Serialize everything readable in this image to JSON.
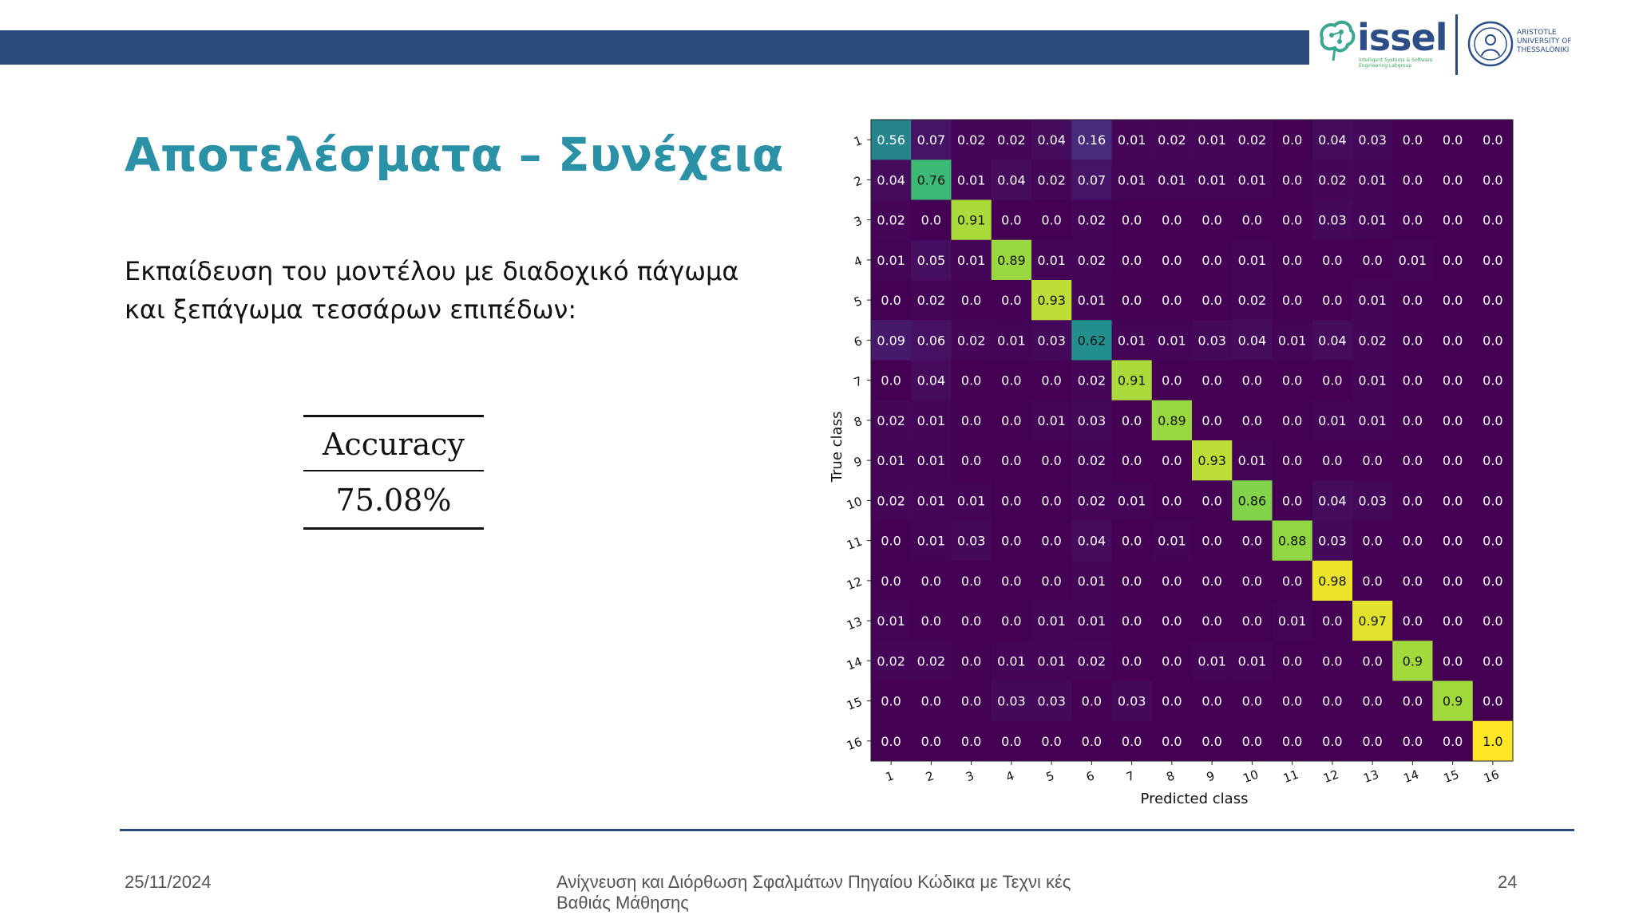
{
  "header": {
    "logo_issel_text": "issel",
    "logo_issel_sub": "Intelligent Systems & Software Engineering Labgroup",
    "logo_auth_text": "ARISTOTLE UNIVERSITY OF THESSALONIKI",
    "colors": {
      "bar": "#2b4a7d",
      "title": "#2a91a6"
    }
  },
  "slide": {
    "title": "Αποτελέσματα – Συνέχεια",
    "body_line1": "Εκπαίδευση του μοντέλου με διαδοχικό πάγωμα",
    "body_line2": "και ξεπάγωμα τεσσάρων επιπέδων:",
    "accuracy_header": "Accuracy",
    "accuracy_value": "75.08%"
  },
  "chart_data": {
    "type": "heatmap",
    "xlabel": "Predicted class",
    "ylabel": "True class",
    "classes": [
      "1",
      "2",
      "3",
      "4",
      "5",
      "6",
      "7",
      "8",
      "9",
      "10",
      "11",
      "12",
      "13",
      "14",
      "15",
      "16"
    ],
    "colormap": "viridis",
    "vmin": 0,
    "vmax": 1,
    "matrix": [
      [
        "0.56",
        "0.07",
        "0.02",
        "0.02",
        "0.04",
        "0.16",
        "0.01",
        "0.02",
        "0.01",
        "0.02",
        "0.0",
        "0.04",
        "0.03",
        "0.0",
        "0.0",
        "0.0"
      ],
      [
        "0.04",
        "0.76",
        "0.01",
        "0.04",
        "0.02",
        "0.07",
        "0.01",
        "0.01",
        "0.01",
        "0.01",
        "0.0",
        "0.02",
        "0.01",
        "0.0",
        "0.0",
        "0.0"
      ],
      [
        "0.02",
        "0.0",
        "0.91",
        "0.0",
        "0.0",
        "0.02",
        "0.0",
        "0.0",
        "0.0",
        "0.0",
        "0.0",
        "0.03",
        "0.01",
        "0.0",
        "0.0",
        "0.0"
      ],
      [
        "0.01",
        "0.05",
        "0.01",
        "0.89",
        "0.01",
        "0.02",
        "0.0",
        "0.0",
        "0.0",
        "0.01",
        "0.0",
        "0.0",
        "0.0",
        "0.01",
        "0.0",
        "0.0"
      ],
      [
        "0.0",
        "0.02",
        "0.0",
        "0.0",
        "0.93",
        "0.01",
        "0.0",
        "0.0",
        "0.0",
        "0.02",
        "0.0",
        "0.0",
        "0.01",
        "0.0",
        "0.0",
        "0.0"
      ],
      [
        "0.09",
        "0.06",
        "0.02",
        "0.01",
        "0.03",
        "0.62",
        "0.01",
        "0.01",
        "0.03",
        "0.04",
        "0.01",
        "0.04",
        "0.02",
        "0.0",
        "0.0",
        "0.0"
      ],
      [
        "0.0",
        "0.04",
        "0.0",
        "0.0",
        "0.0",
        "0.02",
        "0.91",
        "0.0",
        "0.0",
        "0.0",
        "0.0",
        "0.0",
        "0.01",
        "0.0",
        "0.0",
        "0.0"
      ],
      [
        "0.02",
        "0.01",
        "0.0",
        "0.0",
        "0.01",
        "0.03",
        "0.0",
        "0.89",
        "0.0",
        "0.0",
        "0.0",
        "0.01",
        "0.01",
        "0.0",
        "0.0",
        "0.0"
      ],
      [
        "0.01",
        "0.01",
        "0.0",
        "0.0",
        "0.0",
        "0.02",
        "0.0",
        "0.0",
        "0.93",
        "0.01",
        "0.0",
        "0.0",
        "0.0",
        "0.0",
        "0.0",
        "0.0"
      ],
      [
        "0.02",
        "0.01",
        "0.01",
        "0.0",
        "0.0",
        "0.02",
        "0.01",
        "0.0",
        "0.0",
        "0.86",
        "0.0",
        "0.04",
        "0.03",
        "0.0",
        "0.0",
        "0.0"
      ],
      [
        "0.0",
        "0.01",
        "0.03",
        "0.0",
        "0.0",
        "0.04",
        "0.0",
        "0.01",
        "0.0",
        "0.0",
        "0.88",
        "0.03",
        "0.0",
        "0.0",
        "0.0",
        "0.0"
      ],
      [
        "0.0",
        "0.0",
        "0.0",
        "0.0",
        "0.0",
        "0.01",
        "0.0",
        "0.0",
        "0.0",
        "0.0",
        "0.0",
        "0.98",
        "0.0",
        "0.0",
        "0.0",
        "0.0"
      ],
      [
        "0.01",
        "0.0",
        "0.0",
        "0.0",
        "0.01",
        "0.01",
        "0.0",
        "0.0",
        "0.0",
        "0.0",
        "0.01",
        "0.0",
        "0.97",
        "0.0",
        "0.0",
        "0.0"
      ],
      [
        "0.02",
        "0.02",
        "0.0",
        "0.01",
        "0.01",
        "0.02",
        "0.0",
        "0.0",
        "0.01",
        "0.01",
        "0.0",
        "0.0",
        "0.0",
        "0.9",
        "0.0",
        "0.0"
      ],
      [
        "0.0",
        "0.0",
        "0.0",
        "0.03",
        "0.03",
        "0.0",
        "0.03",
        "0.0",
        "0.0",
        "0.0",
        "0.0",
        "0.0",
        "0.0",
        "0.0",
        "0.9",
        "0.0"
      ],
      [
        "0.0",
        "0.0",
        "0.0",
        "0.0",
        "0.0",
        "0.0",
        "0.0",
        "0.0",
        "0.0",
        "0.0",
        "0.0",
        "0.0",
        "0.0",
        "0.0",
        "0.0",
        "1.0"
      ]
    ]
  },
  "footer": {
    "date": "25/11/2024",
    "title": "Ανίχνευση και Διόρθωση Σφαλμάτων Πηγαίου Κώδικα με Τεχνι κές Βαθιάς Μάθησης",
    "page": "24"
  }
}
